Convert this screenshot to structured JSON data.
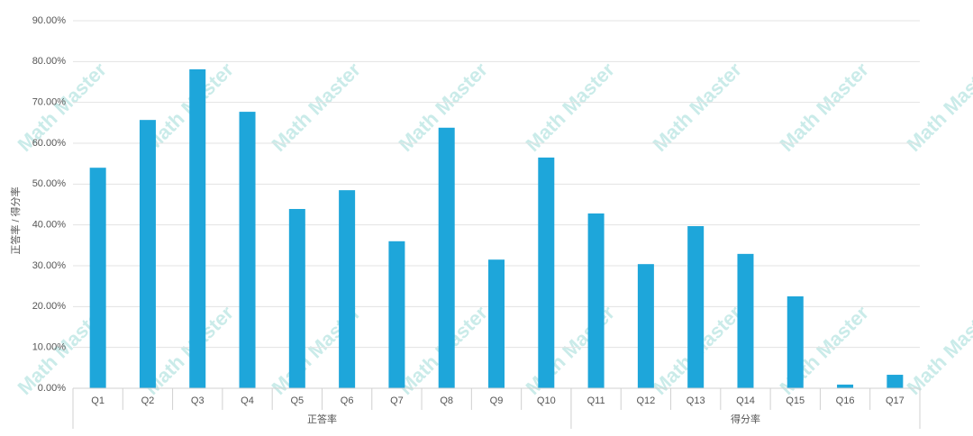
{
  "chart_data": {
    "type": "bar",
    "y_label": "正答率 / 得分率",
    "watermark": "Math Master",
    "category_groups": [
      {
        "name": "正答率",
        "categories": [
          "Q1",
          "Q2",
          "Q3",
          "Q4",
          "Q5",
          "Q6",
          "Q7",
          "Q8",
          "Q9",
          "Q10"
        ]
      },
      {
        "name": "得分率",
        "categories": [
          "Q11",
          "Q12",
          "Q13",
          "Q14",
          "Q15",
          "Q16",
          "Q17"
        ]
      }
    ],
    "values": [
      54.0,
      65.7,
      78.1,
      67.7,
      43.9,
      48.5,
      36.0,
      63.8,
      31.5,
      56.5,
      42.8,
      30.4,
      39.7,
      32.9,
      22.5,
      0.9,
      3.3
    ],
    "color": "#1ea6da",
    "ylim": [
      0,
      90
    ],
    "yticks": [
      {
        "value": 0,
        "label": "0.00%"
      },
      {
        "value": 10,
        "label": "10.00%"
      },
      {
        "value": 20,
        "label": "20.00%"
      },
      {
        "value": 30,
        "label": "30.00%"
      },
      {
        "value": 40,
        "label": "40.00%"
      },
      {
        "value": 50,
        "label": "50.00%"
      },
      {
        "value": 60,
        "label": "60.00%"
      },
      {
        "value": 70,
        "label": "70.00%"
      },
      {
        "value": 80,
        "label": "80.00%"
      },
      {
        "value": 90,
        "label": "90.00%"
      }
    ],
    "grid": true
  }
}
